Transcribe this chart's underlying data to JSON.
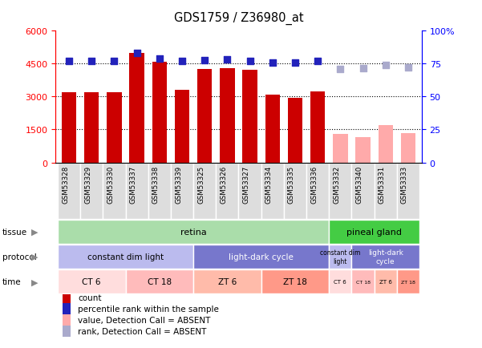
{
  "title": "GDS1759 / Z36980_at",
  "samples": [
    "GSM53328",
    "GSM53329",
    "GSM53330",
    "GSM53337",
    "GSM53338",
    "GSM53339",
    "GSM53325",
    "GSM53326",
    "GSM53327",
    "GSM53334",
    "GSM53335",
    "GSM53336",
    "GSM53332",
    "GSM53340",
    "GSM53331",
    "GSM53333"
  ],
  "counts": [
    3200,
    3200,
    3200,
    5000,
    4600,
    3300,
    4250,
    4300,
    4200,
    3100,
    2950,
    3250,
    null,
    null,
    null,
    null
  ],
  "counts_absent": [
    null,
    null,
    null,
    null,
    null,
    null,
    null,
    null,
    null,
    null,
    null,
    null,
    1300,
    1150,
    1700,
    1350
  ],
  "percentile_ranks": [
    77,
    77,
    77,
    83,
    79,
    77,
    77.5,
    78,
    77,
    76,
    75.5,
    77,
    null,
    null,
    null,
    null
  ],
  "percentile_ranks_absent": [
    null,
    null,
    null,
    null,
    null,
    null,
    null,
    null,
    null,
    null,
    null,
    null,
    71,
    71.5,
    74,
    72
  ],
  "ylim_left": [
    0,
    6000
  ],
  "ylim_right": [
    0,
    100
  ],
  "yticks_left": [
    0,
    1500,
    3000,
    4500,
    6000
  ],
  "ytick_labels_left": [
    "0",
    "1500",
    "3000",
    "4500",
    "6000"
  ],
  "yticks_right": [
    0,
    25,
    50,
    75,
    100
  ],
  "ytick_labels_right": [
    "0",
    "25",
    "50",
    "75",
    "100%"
  ],
  "bar_color_present": "#cc0000",
  "bar_color_absent": "#ffaaaa",
  "dot_color_present": "#2222bb",
  "dot_color_absent": "#aaaacc",
  "dot_size": 30,
  "tissue_retina_color": "#aaddaa",
  "tissue_pineal_color": "#44cc44",
  "protocol_color_cdl": "#bbbbee",
  "protocol_color_ldc": "#7777cc",
  "time_color_ct6": "#ffdddd",
  "time_color_ct18": "#ffbbbb",
  "time_color_zt6": "#ffbbaa",
  "time_color_zt18": "#ff9988",
  "label_color": "#888888",
  "arrow_color": "#888888"
}
